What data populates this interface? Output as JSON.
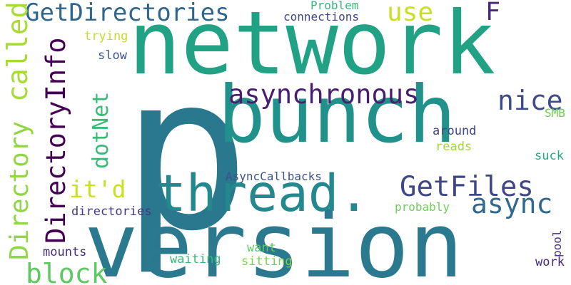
{
  "words": [
    {
      "text": "p",
      "color": "#2a788e"
    },
    {
      "text": "network",
      "color": "#22a284"
    },
    {
      "text": "bunch",
      "color": "#21918c"
    },
    {
      "text": "version",
      "color": "#2a798e"
    },
    {
      "text": "thread.",
      "color": "#23898e"
    },
    {
      "text": "GetDirectories",
      "color": "#30668e"
    },
    {
      "text": "use",
      "color": "#c8e020"
    },
    {
      "text": "F",
      "color": "#482979"
    },
    {
      "text": "called",
      "color": "#a8db34"
    },
    {
      "text": "DirectoryInfo",
      "color": "#440154"
    },
    {
      "text": "Directory",
      "color": "#90d743"
    },
    {
      "text": "asynchronous",
      "color": "#481f70"
    },
    {
      "text": "dotNet",
      "color": "#3aba76"
    },
    {
      "text": "nice",
      "color": "#3e4a89"
    },
    {
      "text": "it'd",
      "color": "#c8e020"
    },
    {
      "text": "GetFiles",
      "color": "#3f4788"
    },
    {
      "text": "async",
      "color": "#31688e"
    },
    {
      "text": "block",
      "color": "#5ec962"
    },
    {
      "text": "Problem",
      "color": "#35b779"
    },
    {
      "text": "connections",
      "color": "#414487"
    },
    {
      "text": "trying",
      "color": "#c2df23"
    },
    {
      "text": "slow",
      "color": "#3b528b"
    },
    {
      "text": "SMB",
      "color": "#6ece58"
    },
    {
      "text": "around",
      "color": "#404387"
    },
    {
      "text": "reads",
      "color": "#a0da39"
    },
    {
      "text": "suck",
      "color": "#22a785"
    },
    {
      "text": "AsyncCallbacks",
      "color": "#3b528b"
    },
    {
      "text": "probably",
      "color": "#6ece58"
    },
    {
      "text": "directories",
      "color": "#443983"
    },
    {
      "text": "pool",
      "color": "#46337e"
    },
    {
      "text": "mounts",
      "color": "#472d7b"
    },
    {
      "text": "want",
      "color": "#5ec962"
    },
    {
      "text": "waiting",
      "color": "#35b779"
    },
    {
      "text": "sitting",
      "color": "#7ad151"
    },
    {
      "text": "work",
      "color": "#482979"
    }
  ]
}
